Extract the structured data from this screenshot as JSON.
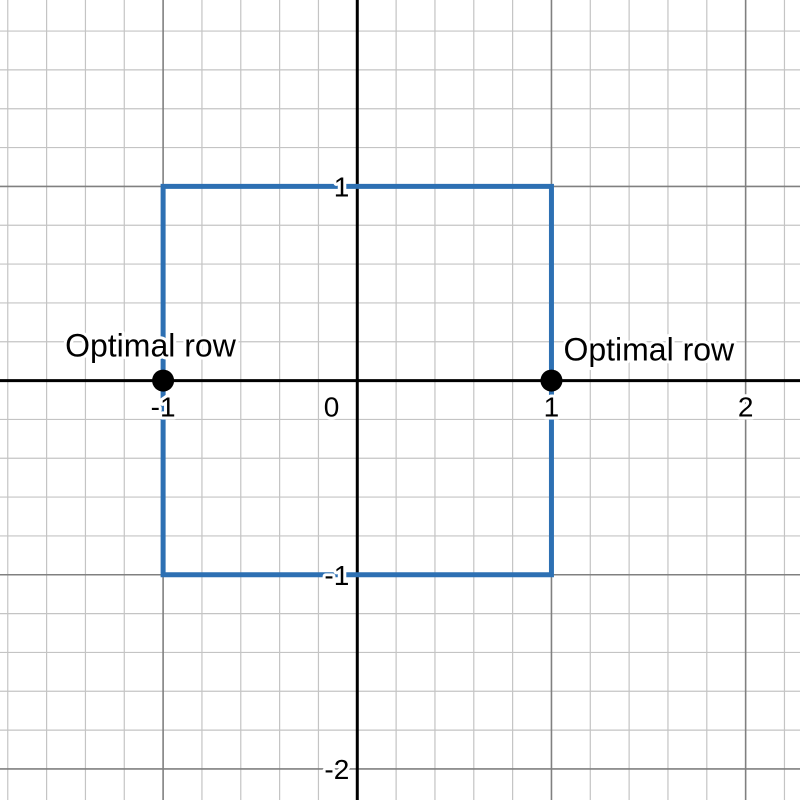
{
  "chart_data": {
    "type": "scatter",
    "xlim": [
      -1.84,
      2.28
    ],
    "ylim": [
      -2.16,
      1.96
    ],
    "grid": true,
    "minor_step": 0.2,
    "major_step": 1,
    "x_ticks": [
      {
        "value": -1,
        "label": "-1"
      },
      {
        "value": 0,
        "label": "0"
      },
      {
        "value": 1,
        "label": "1"
      },
      {
        "value": 2,
        "label": "2"
      }
    ],
    "y_ticks": [
      {
        "value": 1,
        "label": "1"
      },
      {
        "value": -1,
        "label": "-1"
      },
      {
        "value": -2,
        "label": "-2"
      }
    ],
    "series": [
      {
        "kind": "polygon",
        "color": "#2d70b3",
        "points": [
          [
            -1,
            1
          ],
          [
            1,
            1
          ],
          [
            1,
            -1
          ],
          [
            -1,
            -1
          ]
        ]
      },
      {
        "kind": "points",
        "color": "#000000",
        "points": [
          {
            "x": -1,
            "y": 0,
            "label": "Optimal row"
          },
          {
            "x": 1,
            "y": 0,
            "label": "Optimal row"
          }
        ]
      }
    ]
  }
}
